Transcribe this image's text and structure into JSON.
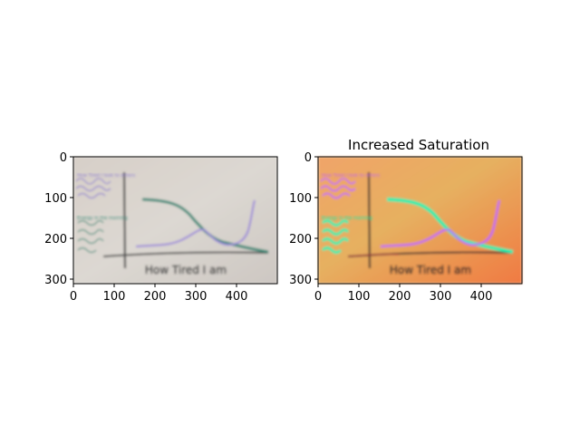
{
  "figure": {
    "left_panel": {
      "title": "",
      "handwritten_xlabel": "How Tired I am",
      "handwritten_ylabel_purple": "How Tired I look to others",
      "handwritten_ylabel_teal": "Energy in the morning",
      "x_ticks": [
        "0",
        "100",
        "200",
        "300",
        "400"
      ],
      "y_ticks": [
        "0",
        "100",
        "200",
        "300"
      ]
    },
    "right_panel": {
      "title": "Increased Saturation",
      "handwritten_xlabel": "How Tired I am",
      "handwritten_ylabel_purple": "How Tired I look to others",
      "handwritten_ylabel_teal": "Energy in the morning",
      "x_ticks": [
        "0",
        "100",
        "200",
        "300",
        "400"
      ],
      "y_ticks": [
        "0",
        "100",
        "200",
        "300"
      ]
    }
  },
  "colors": {
    "left_background": "#d8d2cc",
    "right_background_a": "#f3a45c",
    "right_background_b": "#f0844a",
    "left_teal": "#3a8a78",
    "left_purple": "#9a86d8",
    "right_teal": "#10f0b0",
    "right_purple": "#c060ff",
    "ink": "#2a2a2a"
  }
}
